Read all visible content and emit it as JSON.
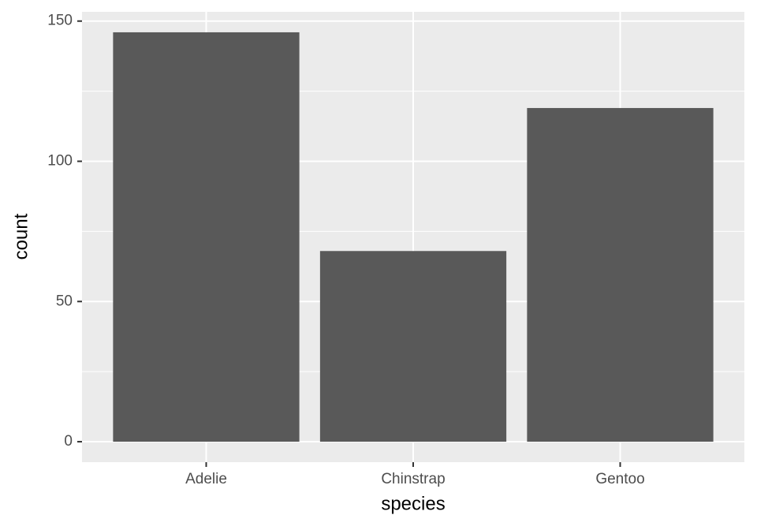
{
  "chart_data": {
    "type": "bar",
    "x_label": "species",
    "y_label": "count",
    "categories": [
      "Adelie",
      "Chinstrap",
      "Gentoo"
    ],
    "values": [
      146,
      68,
      119
    ],
    "color": "#595959",
    "ylim": [
      -7.3,
      153.3
    ],
    "yticks": [
      0,
      50,
      100,
      150
    ],
    "minor_yticks": [
      25,
      75,
      125
    ],
    "grid": true,
    "panel_color": "#ebebeb"
  }
}
